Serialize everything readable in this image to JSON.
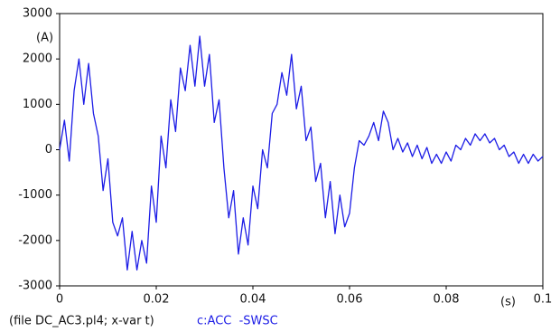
{
  "chart_data": {
    "type": "line",
    "x_label": "(s)",
    "y_label": "(A)",
    "note": "(file DC_AC3.pl4; x-var t)",
    "x": [
      0,
      0.001,
      0.002,
      0.003,
      0.004,
      0.005,
      0.006,
      0.007,
      0.008,
      0.009,
      0.01,
      0.011,
      0.012,
      0.013,
      0.014,
      0.015,
      0.016,
      0.017,
      0.018,
      0.019,
      0.02,
      0.021,
      0.022,
      0.023,
      0.024,
      0.025,
      0.026,
      0.027,
      0.028,
      0.029,
      0.03,
      0.031,
      0.032,
      0.033,
      0.034,
      0.035,
      0.036,
      0.037,
      0.038,
      0.039,
      0.04,
      0.041,
      0.042,
      0.043,
      0.044,
      0.045,
      0.046,
      0.047,
      0.048,
      0.049,
      0.05,
      0.051,
      0.052,
      0.053,
      0.054,
      0.055,
      0.056,
      0.057,
      0.058,
      0.059,
      0.06,
      0.061,
      0.062,
      0.063,
      0.064,
      0.065,
      0.066,
      0.067,
      0.068,
      0.069,
      0.07,
      0.071,
      0.072,
      0.073,
      0.074,
      0.075,
      0.076,
      0.077,
      0.078,
      0.079,
      0.08,
      0.081,
      0.082,
      0.083,
      0.084,
      0.085,
      0.086,
      0.087,
      0.088,
      0.089,
      0.09,
      0.091,
      0.092,
      0.093,
      0.094,
      0.095,
      0.096,
      0.097,
      0.098,
      0.099,
      0.1
    ],
    "series": [
      {
        "name": "c:ACC  -SWSC",
        "color": "#1c1ce6",
        "values": [
          0,
          650,
          -250,
          1300,
          2000,
          1000,
          1900,
          800,
          300,
          -900,
          -200,
          -1600,
          -1900,
          -1500,
          -2650,
          -1800,
          -2650,
          -2000,
          -2500,
          -800,
          -1600,
          300,
          -400,
          1100,
          400,
          1800,
          1300,
          2300,
          1400,
          2500,
          1400,
          2100,
          600,
          1100,
          -400,
          -1500,
          -900,
          -2300,
          -1500,
          -2100,
          -800,
          -1300,
          0,
          -400,
          800,
          1000,
          1700,
          1200,
          2100,
          900,
          1400,
          200,
          500,
          -700,
          -300,
          -1500,
          -700,
          -1850,
          -1000,
          -1700,
          -1400,
          -400,
          200,
          100,
          300,
          600,
          200,
          850,
          600,
          0,
          250,
          -50,
          150,
          -150,
          100,
          -200,
          50,
          -300,
          -100,
          -300,
          -50,
          -250,
          100,
          0,
          250,
          100,
          350,
          200,
          350,
          150,
          250,
          0,
          100,
          -150,
          -50,
          -300,
          -100,
          -300,
          -100,
          -250,
          -150
        ]
      }
    ],
    "xlim": [
      0,
      0.1
    ],
    "ylim": [
      -3000,
      3000
    ],
    "xticks": [
      0,
      0.02,
      0.04,
      0.06,
      0.08,
      0.1
    ],
    "yticks": [
      3000,
      2000,
      1000,
      0,
      -1000,
      -2000,
      -3000
    ]
  }
}
